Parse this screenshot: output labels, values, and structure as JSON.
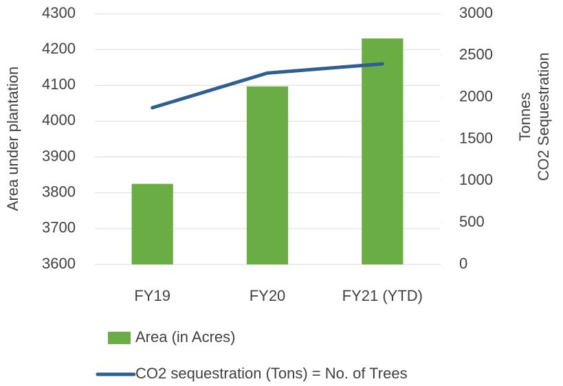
{
  "chart_data": {
    "type": "bar_line",
    "ylabel": "Area under plantation",
    "y2label": [
      "CO2 Sequestration",
      "Tonnes"
    ],
    "categories": [
      "FY19",
      "FY20",
      "FY21 (YTD)"
    ],
    "series": [
      {
        "name": "Area (in Acres)",
        "type": "bar",
        "color": "#6aad44",
        "values": [
          3825,
          4097,
          4231
        ]
      },
      {
        "name": "CO2 sequestration (Tons) = No. of Trees",
        "type": "line",
        "axis": "y2",
        "color": "#2e5f8f",
        "values": [
          1875,
          2290,
          2400
        ]
      }
    ],
    "ylim": [
      3600,
      4300
    ],
    "yticks": [
      3600,
      3700,
      3800,
      3900,
      4000,
      4100,
      4200,
      4300
    ],
    "y2lim": [
      0,
      3000
    ],
    "y2ticks": [
      0,
      500,
      1000,
      1500,
      2000,
      2500,
      3000
    ],
    "grid": true,
    "legend": "bottom"
  }
}
